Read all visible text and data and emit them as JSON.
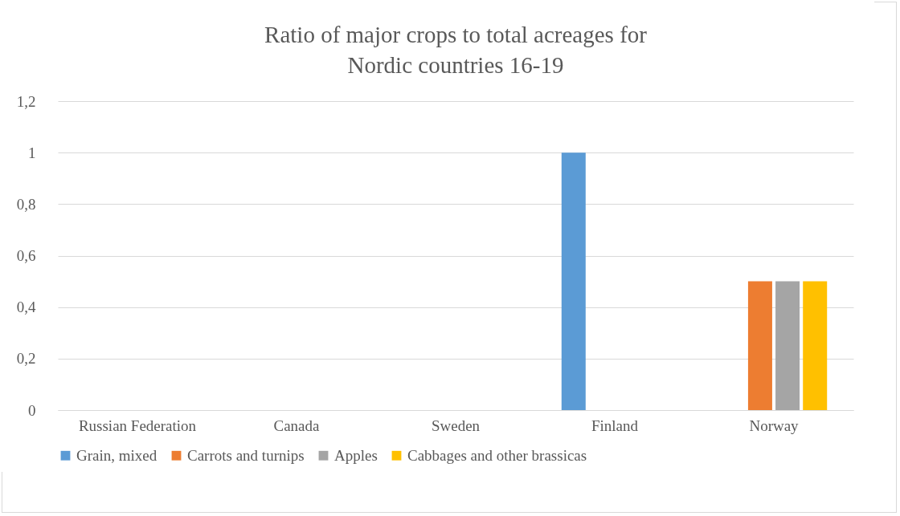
{
  "chart_data": {
    "type": "bar",
    "title": "Ratio of major crops to total acreages for\nNordic countries 16-19",
    "categories": [
      "Russian Federation",
      "Canada",
      "Sweden",
      "Finland",
      "Norway"
    ],
    "series": [
      {
        "name": "Grain, mixed",
        "color": "#5b9bd5",
        "values": [
          0,
          0,
          0,
          1,
          0
        ]
      },
      {
        "name": "Carrots and turnips",
        "color": "#ed7d31",
        "values": [
          0,
          0,
          0,
          0,
          0.5
        ]
      },
      {
        "name": "Apples",
        "color": "#a5a5a5",
        "values": [
          0,
          0,
          0,
          0,
          0.5
        ]
      },
      {
        "name": "Cabbages and other brassicas",
        "color": "#ffc000",
        "values": [
          0,
          0,
          0,
          0,
          0.5
        ]
      }
    ],
    "ylim": [
      0,
      1.2
    ],
    "yticks": [
      0,
      {
        "value": 0.2,
        "label": "0,2"
      },
      {
        "value": 0.4,
        "label": "0,4"
      },
      {
        "value": 0.6,
        "label": "0,6"
      },
      {
        "value": 0.8,
        "label": "0,8"
      },
      1,
      {
        "value": 1.2,
        "label": "1,2"
      }
    ],
    "grid": "y",
    "legend": "bottom"
  }
}
